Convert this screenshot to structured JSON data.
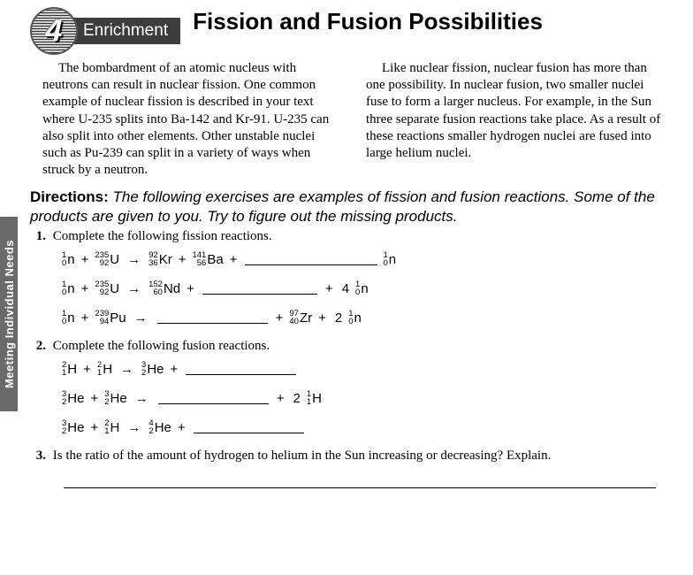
{
  "sidebar": {
    "label": "Meeting Individual Needs"
  },
  "badge": {
    "number": "4",
    "label": "Enrichment"
  },
  "title": "Fission and Fusion Possibilities",
  "intro": {
    "left": "The bombardment of an atomic nucleus with neutrons can result in nuclear fission. One common example of nuclear fission is described in your text where U-235 splits into Ba-142 and Kr-91. U-235 can also split into other elements. Other unstable nuclei such as Pu-239 can split in a variety of ways when struck by a neutron.",
    "right": "Like nuclear fission, nuclear fusion has more than one possibility. In nuclear fusion, two smaller nuclei fuse to form a larger nucleus. For example, in the Sun three separate fusion reactions take place. As a result of these reactions smaller hydrogen nuclei are fused into large helium nuclei."
  },
  "directions": {
    "label": "Directions:",
    "text": "The following exercises are examples of fission and fusion reactions. Some of the products are given to you. Try to figure out the missing products."
  },
  "q1": {
    "num": "1.",
    "text": "Complete the following fission reactions."
  },
  "q2": {
    "num": "2.",
    "text": "Complete the following fusion reactions."
  },
  "q3": {
    "num": "3.",
    "text": "Is the ratio of the amount of hydrogen to helium in the Sun increasing or decreasing? Explain."
  },
  "nuclides": {
    "n": {
      "A": "1",
      "Z": "0",
      "sym": "n"
    },
    "U235": {
      "A": "235",
      "Z": "92",
      "sym": "U"
    },
    "Kr92": {
      "A": "92",
      "Z": "36",
      "sym": "Kr"
    },
    "Ba141": {
      "A": "141",
      "Z": "56",
      "sym": "Ba"
    },
    "Nd152": {
      "A": "152",
      "Z": "60",
      "sym": "Nd"
    },
    "Pu239": {
      "A": "239",
      "Z": "94",
      "sym": "Pu"
    },
    "Zr97": {
      "A": "97",
      "Z": "40",
      "sym": "Zr"
    },
    "H2": {
      "A": "2",
      "Z": "1",
      "sym": "H"
    },
    "He3": {
      "A": "3",
      "Z": "2",
      "sym": "He"
    },
    "H1": {
      "A": "1",
      "Z": "1",
      "sym": "H"
    },
    "He4": {
      "A": "4",
      "Z": "2",
      "sym": "He"
    }
  },
  "coef": {
    "four": "4",
    "two": "2"
  },
  "ops": {
    "plus": "+",
    "arrow": "→"
  }
}
